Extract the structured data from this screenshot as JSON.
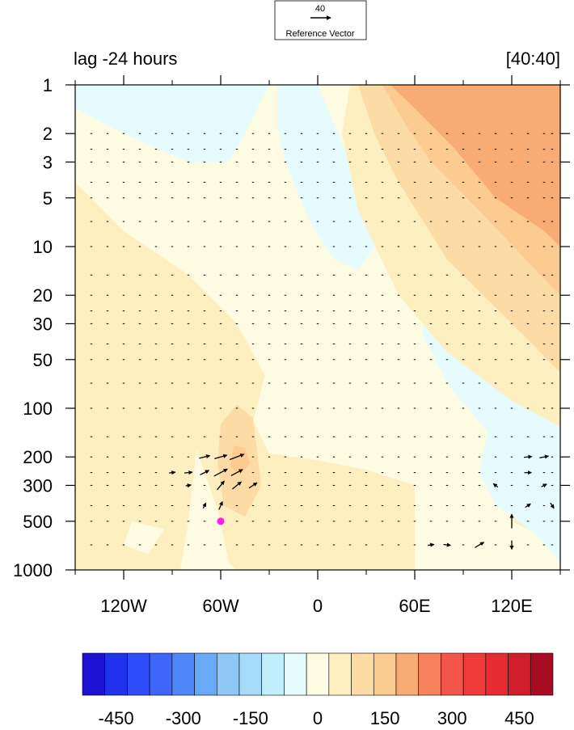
{
  "chart_data": {
    "type": "contour",
    "title_left": "lag -24 hours",
    "title_right": "[40:40]",
    "reference_vector": {
      "magnitude": "40",
      "label": "Reference Vector"
    },
    "x_axis": {
      "range": [
        -150,
        150
      ],
      "ticks": [
        -120,
        -60,
        0,
        60,
        120
      ],
      "tick_labels": [
        "120W",
        "60W",
        "0",
        "60E",
        "120E"
      ],
      "minor_ticks": [
        -150,
        -90,
        -30,
        30,
        90,
        150
      ]
    },
    "y_axis": {
      "scale": "log",
      "reversed": true,
      "range": [
        1,
        1000
      ],
      "ticks": [
        1,
        2,
        3,
        5,
        10,
        20,
        30,
        50,
        100,
        200,
        300,
        500,
        1000
      ],
      "tick_labels": [
        "1",
        "2",
        "3",
        "5",
        "10",
        "20",
        "30",
        "50",
        "100",
        "200",
        "300",
        "500",
        "1000"
      ]
    },
    "colorbar": {
      "levels": [
        -525,
        -475,
        -425,
        -375,
        -325,
        -275,
        -225,
        -175,
        -125,
        -75,
        -25,
        25,
        75,
        125,
        175,
        225,
        275,
        325,
        375,
        425,
        475,
        525
      ],
      "colors": [
        "#1d10d0",
        "#2032ee",
        "#2f4dfb",
        "#3f66fb",
        "#4f87fb",
        "#6aa8f8",
        "#8ec9f6",
        "#a6dcfa",
        "#c0eefa",
        "#e5fbfd",
        "#fefbe3",
        "#fdefc0",
        "#fddba4",
        "#fbcb90",
        "#f8ac73",
        "#f5825a",
        "#f2554a",
        "#f03b3a",
        "#e62b32",
        "#d11e2c",
        "#a80c22"
      ],
      "tick_values": [
        -450,
        -300,
        -150,
        0,
        150,
        300,
        450
      ],
      "tick_labels": [
        "-450",
        "-300",
        "-150",
        "0",
        "150",
        "300",
        "450"
      ]
    },
    "marker": {
      "lon": -60,
      "p": 500,
      "color": "#ff1ee6"
    },
    "contour_regions": [
      {
        "value": 25,
        "points": [
          [
            -150,
            4
          ],
          [
            -120,
            8
          ],
          [
            -80,
            15
          ],
          [
            -50,
            30
          ],
          [
            -30,
            70
          ],
          [
            -30,
            130
          ],
          [
            -20,
            170
          ],
          [
            20,
            190
          ],
          [
            60,
            200
          ],
          [
            90,
            150
          ],
          [
            120,
            100
          ],
          [
            150,
            60
          ],
          [
            150,
            1000
          ],
          [
            -150,
            1000
          ]
        ]
      },
      {
        "value": -25,
        "points": [
          [
            -150,
            1
          ],
          [
            -20,
            1
          ],
          [
            -20,
            2
          ],
          [
            0,
            3
          ],
          [
            30,
            8
          ],
          [
            50,
            15
          ],
          [
            80,
            30
          ],
          [
            115,
            60
          ],
          [
            150,
            80
          ],
          [
            150,
            150
          ],
          [
            130,
            200
          ],
          [
            110,
            300
          ],
          [
            120,
            500
          ],
          [
            150,
            700
          ],
          [
            150,
            1000
          ],
          [
            90,
            1000
          ],
          [
            60,
            1000
          ],
          [
            60,
            300
          ],
          [
            30,
            240
          ],
          [
            0,
            210
          ],
          [
            -30,
            190
          ],
          [
            -40,
            120
          ],
          [
            -30,
            50
          ],
          [
            -50,
            25
          ],
          [
            -90,
            12
          ],
          [
            -150,
            3
          ]
        ]
      },
      {
        "value": -75,
        "points": [
          [
            -150,
            1
          ],
          [
            -30,
            1
          ],
          [
            -45,
            2
          ],
          [
            -55,
            3
          ],
          [
            -80,
            3
          ],
          [
            -120,
            2
          ],
          [
            -150,
            1.4
          ]
        ]
      },
      {
        "value": -75,
        "points": [
          [
            -25,
            1
          ],
          [
            0,
            1
          ],
          [
            20,
            3
          ],
          [
            30,
            6
          ],
          [
            35,
            10
          ],
          [
            25,
            14
          ],
          [
            10,
            12
          ],
          [
            -5,
            7
          ],
          [
            -20,
            3
          ],
          [
            -25,
            1.8
          ]
        ]
      },
      {
        "value": -75,
        "points": [
          [
            65,
            25
          ],
          [
            85,
            30
          ],
          [
            105,
            55
          ],
          [
            125,
            90
          ],
          [
            150,
            110
          ],
          [
            150,
            900
          ],
          [
            135,
            600
          ],
          [
            110,
            400
          ],
          [
            100,
            250
          ],
          [
            105,
            140
          ],
          [
            80,
            70
          ],
          [
            65,
            35
          ]
        ]
      },
      {
        "value": -25,
        "points": [
          [
            -75,
            180
          ],
          [
            -70,
            250
          ],
          [
            -62,
            420
          ],
          [
            -55,
            900
          ],
          [
            -50,
            1000
          ],
          [
            -85,
            1000
          ],
          [
            -80,
            500
          ]
        ]
      },
      {
        "value": -25,
        "points": [
          [
            -115,
            500
          ],
          [
            -95,
            560
          ],
          [
            -105,
            800
          ],
          [
            -120,
            700
          ]
        ]
      },
      {
        "value": 25,
        "points": [
          [
            -100,
            140
          ],
          [
            -92,
            160
          ],
          [
            -90,
            260
          ],
          [
            -92,
            360
          ],
          [
            -98,
            380
          ],
          [
            -102,
            280
          ]
        ]
      },
      {
        "value": 25,
        "points": [
          [
            -100,
            700
          ],
          [
            -92,
            660
          ],
          [
            -88,
            760
          ],
          [
            -98,
            820
          ]
        ]
      },
      {
        "value": 75,
        "points": [
          [
            -60,
            125
          ],
          [
            -50,
            95
          ],
          [
            -40,
            115
          ],
          [
            -35,
            300
          ],
          [
            -45,
            470
          ],
          [
            -58,
            400
          ],
          [
            -62,
            220
          ]
        ]
      },
      {
        "value": 125,
        "points": [
          [
            -52,
            170
          ],
          [
            -45,
            175
          ],
          [
            -42,
            220
          ],
          [
            -48,
            260
          ],
          [
            -54,
            230
          ]
        ]
      },
      {
        "value": 25,
        "points": [
          [
            20,
            1
          ],
          [
            150,
            1
          ],
          [
            150,
            130
          ],
          [
            120,
            90
          ],
          [
            80,
            45
          ],
          [
            50,
            20
          ],
          [
            25,
            6
          ],
          [
            15,
            2
          ]
        ]
      },
      {
        "value": 75,
        "points": [
          [
            25,
            1
          ],
          [
            150,
            1
          ],
          [
            150,
            60
          ],
          [
            120,
            30
          ],
          [
            80,
            12
          ],
          [
            50,
            4
          ],
          [
            35,
            2
          ]
        ]
      },
      {
        "value": 125,
        "points": [
          [
            40,
            1
          ],
          [
            150,
            1
          ],
          [
            150,
            20
          ],
          [
            135,
            14
          ],
          [
            100,
            6
          ],
          [
            70,
            3
          ],
          [
            55,
            1.8
          ]
        ]
      },
      {
        "value": 175,
        "points": [
          [
            45,
            1
          ],
          [
            150,
            1
          ],
          [
            150,
            10
          ],
          [
            140,
            8
          ],
          [
            110,
            5
          ],
          [
            85,
            2.5
          ],
          [
            60,
            1.4
          ]
        ]
      }
    ],
    "vector_field": {
      "lon": [
        -140,
        -130,
        -120,
        -110,
        -100,
        -90,
        -80,
        -70,
        -60,
        -50,
        -40,
        -30,
        -20,
        -10,
        0,
        10,
        20,
        30,
        40,
        50,
        60,
        70,
        80,
        90,
        100,
        110,
        120,
        130,
        140,
        145
      ],
      "p": [
        2,
        2.5,
        3,
        4,
        5,
        7,
        10,
        15,
        20,
        25,
        30,
        40,
        50,
        70,
        100,
        150,
        200,
        250,
        300,
        400,
        500,
        700
      ],
      "active_cells": [
        {
          "lon": -70,
          "p": 200,
          "u": 12,
          "v": 3
        },
        {
          "lon": -60,
          "p": 200,
          "u": 14,
          "v": 4
        },
        {
          "lon": -50,
          "p": 200,
          "u": 16,
          "v": 6
        },
        {
          "lon": -70,
          "p": 250,
          "u": 10,
          "v": 5
        },
        {
          "lon": -60,
          "p": 250,
          "u": 15,
          "v": 8
        },
        {
          "lon": -50,
          "p": 250,
          "u": 13,
          "v": 7
        },
        {
          "lon": -60,
          "p": 300,
          "u": 8,
          "v": 10
        },
        {
          "lon": -50,
          "p": 300,
          "u": 10,
          "v": 8
        },
        {
          "lon": -40,
          "p": 300,
          "u": 9,
          "v": 6
        },
        {
          "lon": -60,
          "p": 400,
          "u": 4,
          "v": 9
        },
        {
          "lon": -70,
          "p": 400,
          "u": 3,
          "v": 6
        },
        {
          "lon": -90,
          "p": 250,
          "u": 7,
          "v": 1
        },
        {
          "lon": -80,
          "p": 250,
          "u": 9,
          "v": 1
        },
        {
          "lon": -80,
          "p": 300,
          "u": 6,
          "v": 1
        },
        {
          "lon": 100,
          "p": 700,
          "u": 10,
          "v": 6
        },
        {
          "lon": 120,
          "p": 500,
          "u": 0,
          "v": 16
        },
        {
          "lon": 120,
          "p": 700,
          "u": 0,
          "v": -10
        },
        {
          "lon": 130,
          "p": 200,
          "u": 9,
          "v": 1
        },
        {
          "lon": 140,
          "p": 200,
          "u": 10,
          "v": 2
        },
        {
          "lon": 130,
          "p": 250,
          "u": 8,
          "v": 0
        },
        {
          "lon": 140,
          "p": 300,
          "u": 6,
          "v": 3
        },
        {
          "lon": 110,
          "p": 300,
          "u": -5,
          "v": 4
        },
        {
          "lon": 130,
          "p": 400,
          "u": 6,
          "v": 4
        },
        {
          "lon": 145,
          "p": 400,
          "u": 4,
          "v": -6
        },
        {
          "lon": 80,
          "p": 700,
          "u": 8,
          "v": -1
        },
        {
          "lon": 70,
          "p": 700,
          "u": 7,
          "v": 1
        }
      ]
    }
  }
}
